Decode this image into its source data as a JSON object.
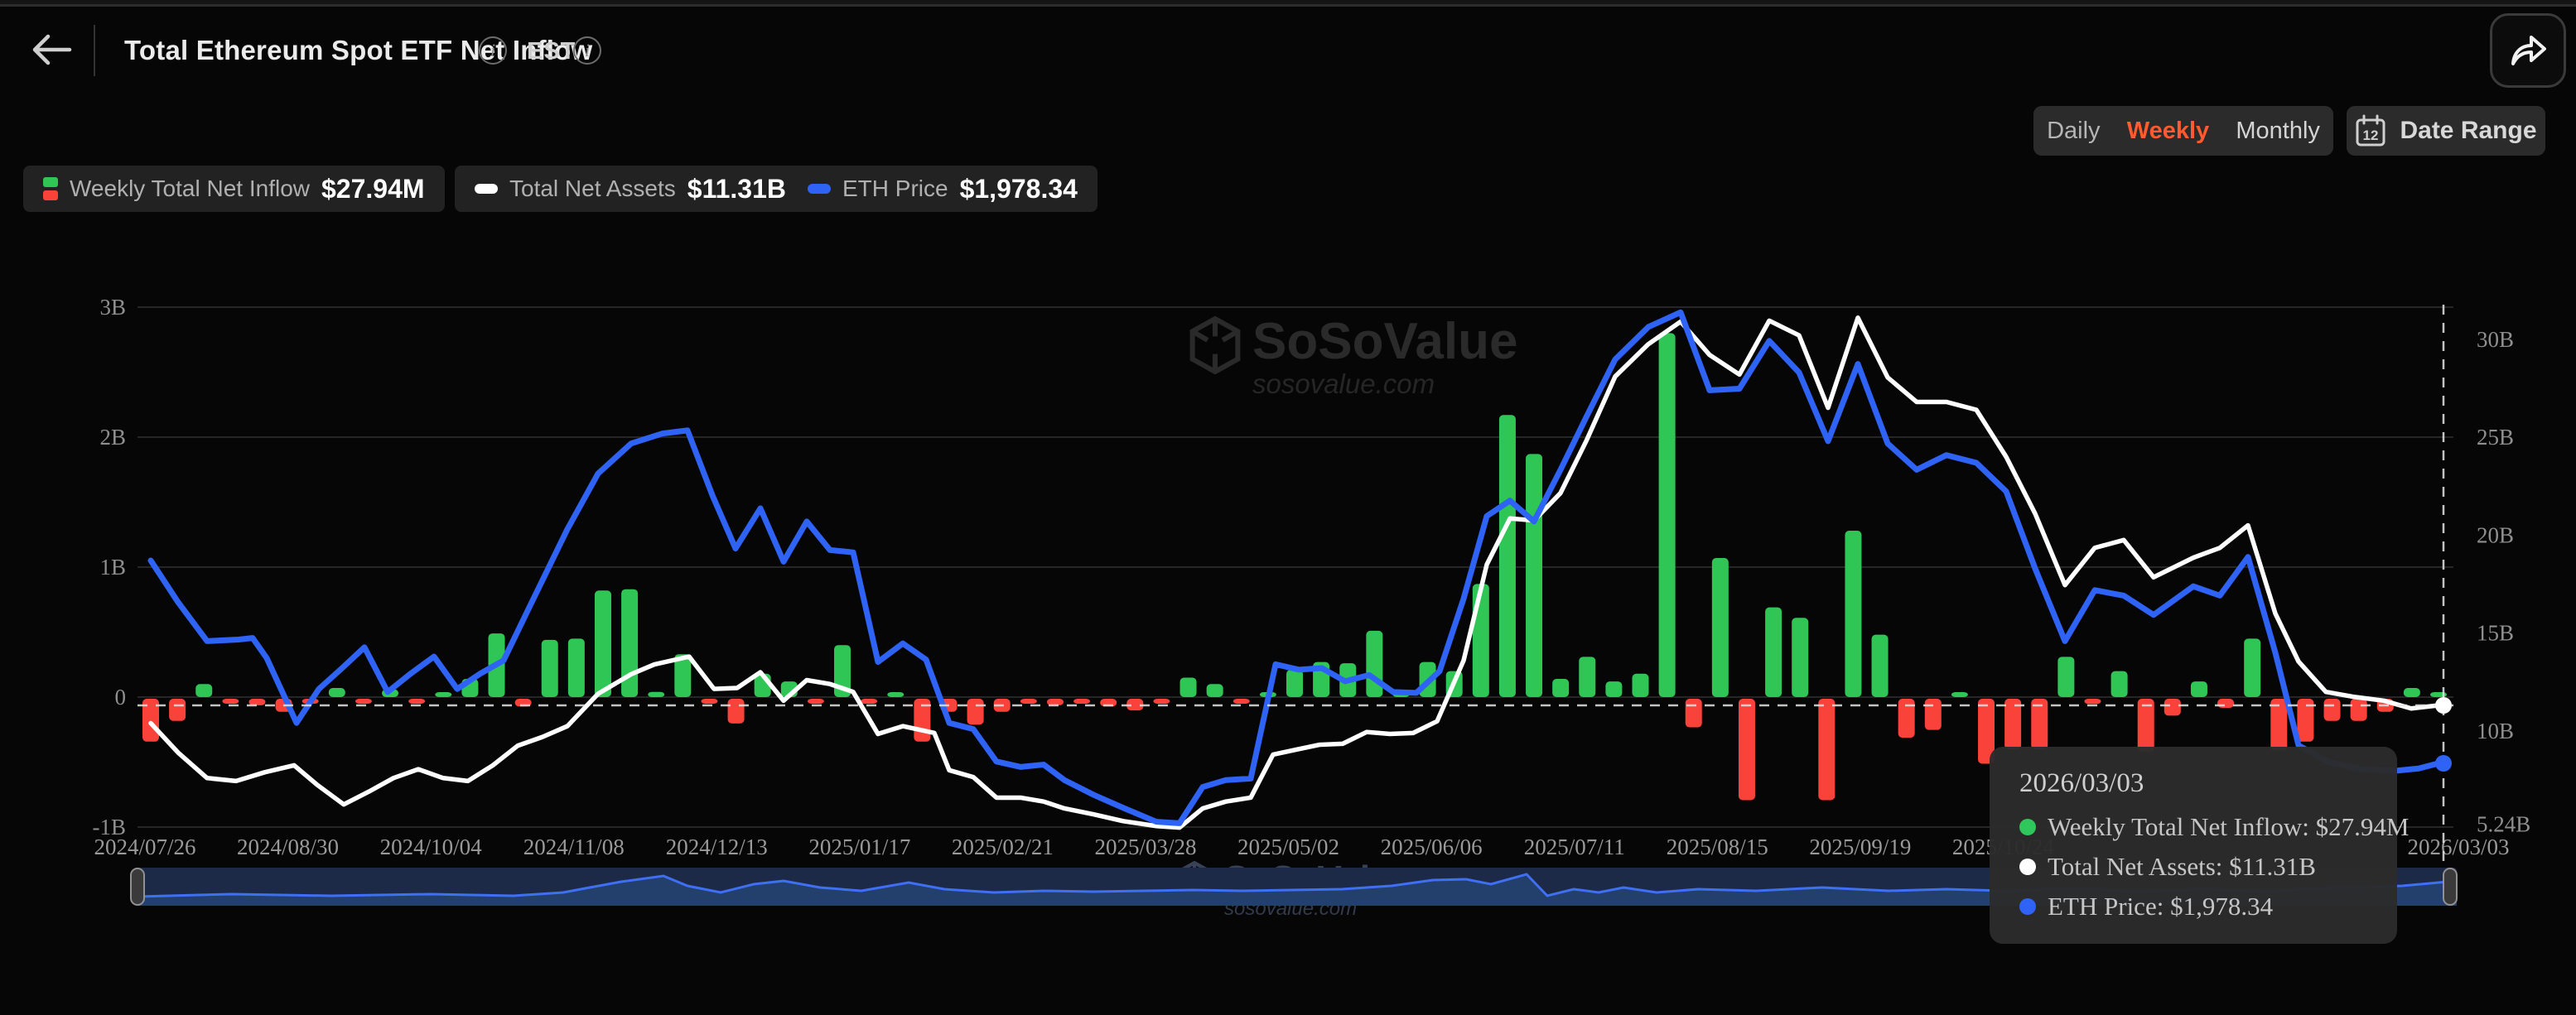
{
  "header": {
    "title": "Total Ethereum Spot ETF Net Inflow",
    "timezone": "EST"
  },
  "toolbar": {
    "periods": [
      "Daily",
      "Weekly",
      "Monthly"
    ],
    "active_period": "Weekly",
    "date_range_label": "Date Range",
    "calendar_day": "12"
  },
  "legend": {
    "items": [
      {
        "label": "Weekly Total Net Inflow",
        "value": "$27.94M",
        "icon": "bar-up-down",
        "colors": [
          "#2fc656",
          "#f8423a"
        ]
      },
      {
        "label": "Total Net Assets",
        "value": "$11.31B",
        "icon": "white-dash",
        "colors": [
          "#ffffff"
        ]
      },
      {
        "label": "ETH Price",
        "value": "$1,978.34",
        "icon": "blue-dash",
        "colors": [
          "#2e63f5"
        ]
      }
    ]
  },
  "watermark": {
    "brand": "SoSoValue",
    "domain": "sosovalue.com"
  },
  "tooltip": {
    "date": "2026/03/03",
    "rows": [
      {
        "text": "Weekly Total Net Inflow: $27.94M",
        "color": "#2fc65b"
      },
      {
        "text": "Total Net Assets: $11.31B",
        "color": "#ffffff"
      },
      {
        "text": "ETH Price: $1,978.34",
        "color": "#2e63f5"
      }
    ]
  },
  "chart_data": {
    "type": "combo-bar-line",
    "title": "Total Ethereum Spot ETF Net Inflow (Weekly)",
    "left_axis": {
      "label": "Weekly Total Net Inflow (USD)",
      "ticks": [
        {
          "v": 3,
          "t": "3B"
        },
        {
          "v": 2,
          "t": "2B"
        },
        {
          "v": 1,
          "t": "1B"
        },
        {
          "v": 0,
          "t": "0"
        },
        {
          "v": -1,
          "t": "-1B"
        }
      ],
      "unit": "billion USD"
    },
    "right_axis": {
      "label": "Total Net Assets (USD)",
      "ticks": [
        {
          "v": 30,
          "t": "30B"
        },
        {
          "v": 25,
          "t": "25B"
        },
        {
          "v": 20,
          "t": "20B"
        },
        {
          "v": 15,
          "t": "15B"
        },
        {
          "v": 10,
          "t": "10B"
        },
        {
          "v": 5.24,
          "t": "5.24B"
        }
      ],
      "unit": "billion USD"
    },
    "x_ticks": [
      "2024/07/26",
      "2024/08/30",
      "2024/10/04",
      "2024/11/08",
      "2024/12/13",
      "2025/01/17",
      "2025/02/21",
      "2025/03/28",
      "2025/05/02",
      "2025/06/06",
      "2025/07/11",
      "2025/08/15",
      "2025/09/19",
      "2025/10/24",
      "2026/03/03"
    ],
    "grid": true,
    "legend_position": "top-left",
    "colors": {
      "inflow_pos": "#2fc656",
      "inflow_neg": "#f8423a",
      "assets": "#ffffff",
      "price": "#2e63f5",
      "gridline": "#262626",
      "axis_text": "#8f8f8f",
      "crosshair": "#e5e5e5"
    },
    "bars_weekly_net_inflow_B": [
      -0.33,
      -0.17,
      0.1,
      -0.03,
      -0.05,
      -0.1,
      -0.02,
      0.07,
      -0.03,
      0.06,
      -0.02,
      0.01,
      0.14,
      0.49,
      -0.06,
      0.44,
      0.45,
      0.82,
      0.83,
      0.04,
      0.33,
      -0.03,
      -0.19,
      0.18,
      0.12,
      -0.02,
      0.4,
      -0.02,
      0.01,
      -0.33,
      -0.1,
      -0.2,
      -0.1,
      -0.02,
      -0.05,
      -0.03,
      -0.06,
      -0.09,
      -0.02,
      0.15,
      0.1,
      -0.02,
      0.02,
      0.21,
      0.27,
      0.26,
      0.51,
      0.02,
      0.27,
      0.2,
      0.87,
      2.17,
      1.87,
      0.14,
      0.31,
      0.12,
      0.18,
      2.8,
      -0.22,
      1.07,
      -0.78,
      0.69,
      0.61,
      -0.78,
      1.28,
      0.48,
      -0.3,
      -0.24,
      0.02,
      -0.5,
      -0.39,
      -0.39,
      0.31,
      -0.04,
      0.2,
      -0.41,
      -0.13,
      0.12,
      -0.07,
      0.45,
      -0.4,
      -0.33,
      -0.17,
      -0.17,
      -0.1,
      0.07,
      0.02794
    ],
    "assets_line_B": [
      [
        182,
        10.4
      ],
      [
        215,
        8.9
      ],
      [
        250,
        7.6
      ],
      [
        285,
        7.45
      ],
      [
        320,
        7.9
      ],
      [
        355,
        8.25
      ],
      [
        383,
        7.25
      ],
      [
        415,
        6.25
      ],
      [
        445,
        6.9
      ],
      [
        475,
        7.6
      ],
      [
        505,
        8.05
      ],
      [
        535,
        7.6
      ],
      [
        565,
        7.45
      ],
      [
        595,
        8.25
      ],
      [
        625,
        9.25
      ],
      [
        655,
        9.7
      ],
      [
        685,
        10.25
      ],
      [
        722,
        11.9
      ],
      [
        762,
        12.9
      ],
      [
        790,
        13.4
      ],
      [
        832,
        13.8
      ],
      [
        862,
        12.15
      ],
      [
        890,
        12.2
      ],
      [
        918,
        13.0
      ],
      [
        946,
        11.55
      ],
      [
        974,
        12.6
      ],
      [
        1002,
        12.4
      ],
      [
        1030,
        12.0
      ],
      [
        1060,
        9.85
      ],
      [
        1090,
        10.25
      ],
      [
        1128,
        9.9
      ],
      [
        1146,
        8.0
      ],
      [
        1175,
        7.65
      ],
      [
        1203,
        6.6
      ],
      [
        1232,
        6.6
      ],
      [
        1260,
        6.4
      ],
      [
        1285,
        6.05
      ],
      [
        1320,
        5.75
      ],
      [
        1356,
        5.4
      ],
      [
        1396,
        5.15
      ],
      [
        1424,
        5.07
      ],
      [
        1452,
        6.05
      ],
      [
        1480,
        6.4
      ],
      [
        1510,
        6.6
      ],
      [
        1537,
        8.8
      ],
      [
        1565,
        9.05
      ],
      [
        1593,
        9.3
      ],
      [
        1621,
        9.35
      ],
      [
        1650,
        9.95
      ],
      [
        1678,
        9.85
      ],
      [
        1706,
        9.9
      ],
      [
        1735,
        10.5
      ],
      [
        1767,
        13.6
      ],
      [
        1795,
        18.5
      ],
      [
        1823,
        20.85
      ],
      [
        1852,
        20.75
      ],
      [
        1884,
        22.15
      ],
      [
        1915,
        24.8
      ],
      [
        1950,
        28.1
      ],
      [
        1990,
        29.75
      ],
      [
        2029,
        30.9
      ],
      [
        2064,
        29.2
      ],
      [
        2100,
        28.2
      ],
      [
        2136,
        30.95
      ],
      [
        2172,
        30.2
      ],
      [
        2207,
        26.5
      ],
      [
        2243,
        31.1
      ],
      [
        2279,
        28.05
      ],
      [
        2314,
        26.8
      ],
      [
        2350,
        26.8
      ],
      [
        2386,
        26.4
      ],
      [
        2422,
        24.0
      ],
      [
        2457,
        21.1
      ],
      [
        2493,
        17.45
      ],
      [
        2529,
        19.35
      ],
      [
        2564,
        19.75
      ],
      [
        2600,
        17.85
      ],
      [
        2648,
        18.85
      ],
      [
        2680,
        19.35
      ],
      [
        2714,
        20.5
      ],
      [
        2747,
        16.0
      ],
      [
        2775,
        13.55
      ],
      [
        2808,
        12.0
      ],
      [
        2841,
        11.75
      ],
      [
        2878,
        11.55
      ],
      [
        2911,
        11.15
      ],
      [
        2944,
        11.31
      ]
    ],
    "price_line_usd": [
      [
        182,
        3292
      ],
      [
        215,
        3022
      ],
      [
        250,
        2770
      ],
      [
        288,
        2780
      ],
      [
        305,
        2790
      ],
      [
        322,
        2660
      ],
      [
        340,
        2450
      ],
      [
        358,
        2240
      ],
      [
        385,
        2460
      ],
      [
        412,
        2590
      ],
      [
        440,
        2730
      ],
      [
        468,
        2440
      ],
      [
        496,
        2560
      ],
      [
        524,
        2670
      ],
      [
        552,
        2460
      ],
      [
        580,
        2560
      ],
      [
        608,
        2645
      ],
      [
        640,
        3000
      ],
      [
        685,
        3495
      ],
      [
        722,
        3855
      ],
      [
        762,
        4050
      ],
      [
        800,
        4115
      ],
      [
        830,
        4135
      ],
      [
        860,
        3715
      ],
      [
        888,
        3370
      ],
      [
        918,
        3630
      ],
      [
        946,
        3285
      ],
      [
        974,
        3545
      ],
      [
        1002,
        3360
      ],
      [
        1030,
        3345
      ],
      [
        1060,
        2635
      ],
      [
        1090,
        2755
      ],
      [
        1118,
        2650
      ],
      [
        1146,
        2240
      ],
      [
        1175,
        2200
      ],
      [
        1203,
        1990
      ],
      [
        1232,
        1955
      ],
      [
        1260,
        1970
      ],
      [
        1285,
        1870
      ],
      [
        1320,
        1775
      ],
      [
        1356,
        1690
      ],
      [
        1396,
        1600
      ],
      [
        1424,
        1590
      ],
      [
        1452,
        1825
      ],
      [
        1480,
        1870
      ],
      [
        1510,
        1880
      ],
      [
        1540,
        2620
      ],
      [
        1568,
        2585
      ],
      [
        1596,
        2595
      ],
      [
        1624,
        2510
      ],
      [
        1653,
        2550
      ],
      [
        1682,
        2440
      ],
      [
        1710,
        2435
      ],
      [
        1738,
        2575
      ],
      [
        1767,
        3045
      ],
      [
        1795,
        3580
      ],
      [
        1823,
        3680
      ],
      [
        1852,
        3545
      ],
      [
        1884,
        3880
      ],
      [
        1915,
        4220
      ],
      [
        1950,
        4595
      ],
      [
        1990,
        4805
      ],
      [
        2029,
        4900
      ],
      [
        2064,
        4395
      ],
      [
        2100,
        4405
      ],
      [
        2136,
        4715
      ],
      [
        2172,
        4510
      ],
      [
        2207,
        4065
      ],
      [
        2243,
        4565
      ],
      [
        2279,
        4050
      ],
      [
        2314,
        3880
      ],
      [
        2350,
        3975
      ],
      [
        2386,
        3925
      ],
      [
        2422,
        3740
      ],
      [
        2457,
        3240
      ],
      [
        2493,
        2770
      ],
      [
        2529,
        3100
      ],
      [
        2564,
        3065
      ],
      [
        2600,
        2940
      ],
      [
        2648,
        3125
      ],
      [
        2680,
        3065
      ],
      [
        2714,
        3315
      ],
      [
        2747,
        2695
      ],
      [
        2775,
        2095
      ],
      [
        2810,
        1990
      ],
      [
        2845,
        1945
      ],
      [
        2892,
        1930
      ],
      [
        2920,
        1945
      ],
      [
        2944,
        1978.34
      ]
    ],
    "hover_point": {
      "date": "2026/03/03",
      "inflow": "$27.94M",
      "assets": "$11.31B",
      "price": "$1,978.34"
    },
    "minimap": {
      "points": [
        [
          166,
          1083
        ],
        [
          280,
          1080
        ],
        [
          400,
          1082
        ],
        [
          520,
          1080
        ],
        [
          620,
          1082
        ],
        [
          680,
          1078
        ],
        [
          712,
          1072
        ],
        [
          750,
          1065
        ],
        [
          801,
          1058
        ],
        [
          830,
          1070
        ],
        [
          870,
          1078
        ],
        [
          910,
          1068
        ],
        [
          946,
          1064
        ],
        [
          990,
          1072
        ],
        [
          1040,
          1076
        ],
        [
          1097,
          1066
        ],
        [
          1140,
          1074
        ],
        [
          1200,
          1078
        ],
        [
          1260,
          1076
        ],
        [
          1320,
          1077
        ],
        [
          1380,
          1076
        ],
        [
          1440,
          1075
        ],
        [
          1500,
          1076
        ],
        [
          1560,
          1075
        ],
        [
          1620,
          1074
        ],
        [
          1680,
          1070
        ],
        [
          1730,
          1063
        ],
        [
          1770,
          1062
        ],
        [
          1800,
          1068
        ],
        [
          1843,
          1056
        ],
        [
          1868,
          1082
        ],
        [
          1900,
          1074
        ],
        [
          1930,
          1078
        ],
        [
          1960,
          1072
        ],
        [
          2000,
          1078
        ],
        [
          2050,
          1074
        ],
        [
          2120,
          1076
        ],
        [
          2200,
          1072
        ],
        [
          2280,
          1076
        ],
        [
          2350,
          1074
        ],
        [
          2420,
          1076
        ],
        [
          2500,
          1073
        ],
        [
          2580,
          1076
        ],
        [
          2660,
          1074
        ],
        [
          2740,
          1076
        ],
        [
          2820,
          1072
        ],
        [
          2900,
          1070
        ],
        [
          2966,
          1064
        ]
      ]
    }
  }
}
